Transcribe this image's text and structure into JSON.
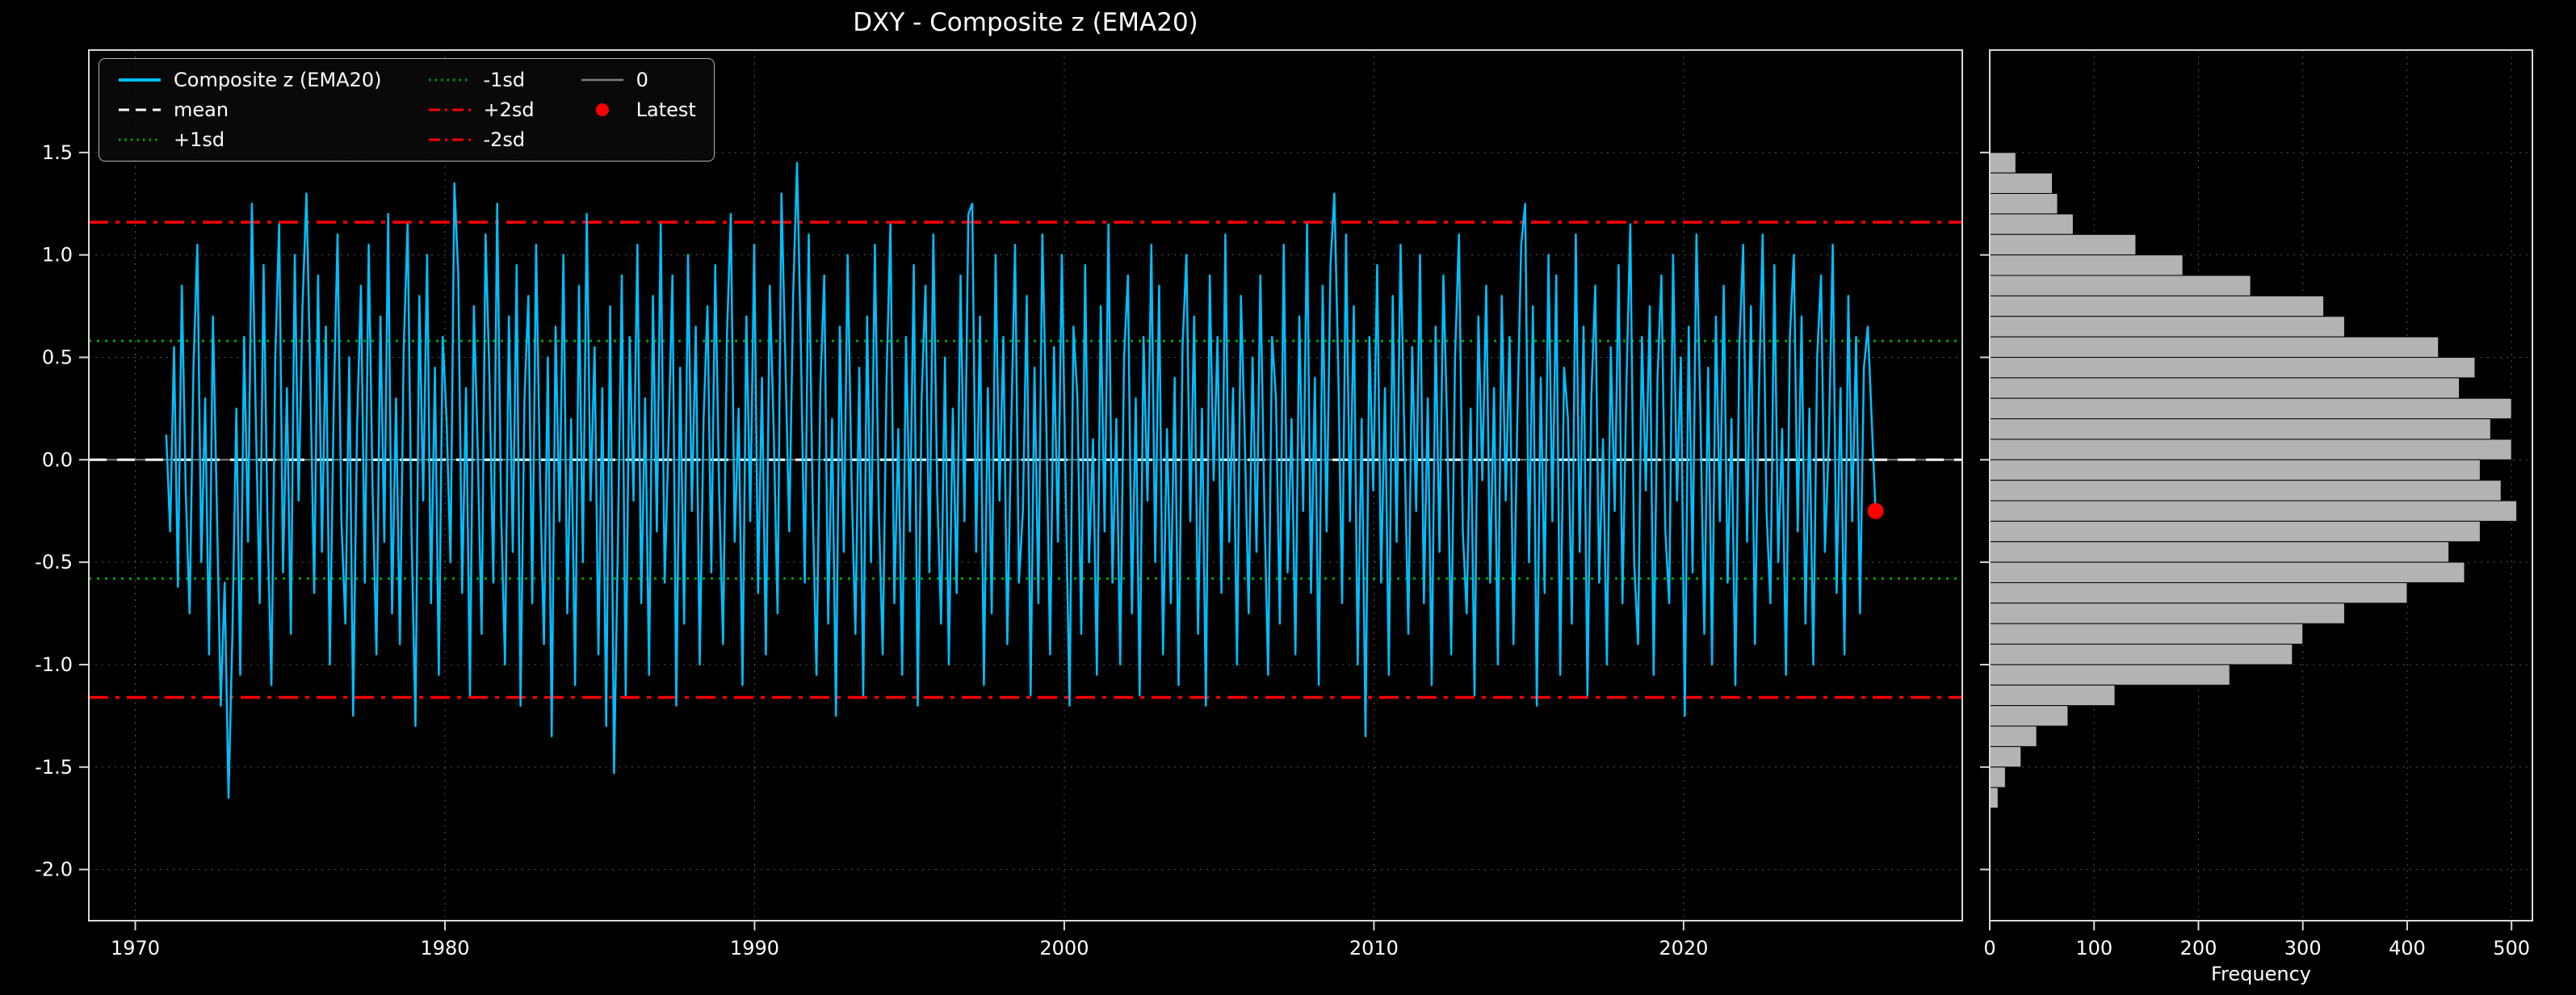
{
  "chart_data": [
    {
      "type": "line",
      "title": "DXY - Composite z (EMA20)",
      "xlim": [
        1968.5,
        2029
      ],
      "ylim": [
        -2.25,
        2.0
      ],
      "xticks": [
        1970,
        1980,
        1990,
        2000,
        2010,
        2020
      ],
      "yticks": [
        -2.0,
        -1.5,
        -1.0,
        -0.5,
        0.0,
        0.5,
        1.0,
        1.5
      ],
      "x_start": 1971.0,
      "x_end": 2026.2,
      "series": [
        {
          "name": "Composite z (EMA20)",
          "color": "#00bfff",
          "values": [
            0.12,
            -0.35,
            0.55,
            -0.62,
            0.85,
            -0.15,
            -0.75,
            0.45,
            1.05,
            -0.5,
            0.3,
            -0.95,
            0.7,
            -0.25,
            -1.2,
            -0.6,
            -1.65,
            -0.85,
            0.25,
            -1.05,
            0.6,
            -0.4,
            1.25,
            0.2,
            -0.7,
            0.95,
            -0.3,
            -1.1,
            0.5,
            1.15,
            -0.55,
            0.35,
            -0.85,
            1.0,
            -0.2,
            0.75,
            1.3,
            0.4,
            -0.65,
            0.9,
            -0.45,
            0.65,
            -1.0,
            0.25,
            1.1,
            -0.3,
            -0.8,
            0.5,
            -1.25,
            0.15,
            0.85,
            -0.6,
            1.05,
            -0.15,
            -0.95,
            0.7,
            -0.4,
            1.2,
            -0.75,
            0.3,
            -0.9,
            0.55,
            1.15,
            -0.35,
            -1.3,
            0.8,
            -0.2,
            1.0,
            -0.7,
            0.45,
            -1.05,
            0.6,
            0.2,
            -0.5,
            1.35,
            0.9,
            -0.65,
            0.35,
            -1.15,
            0.75,
            0.05,
            -0.85,
            1.1,
            0.4,
            -0.6,
            1.25,
            -0.25,
            -1.0,
            0.7,
            -0.45,
            0.95,
            -1.2,
            0.3,
            0.8,
            -0.7,
            1.05,
            -0.1,
            -0.9,
            0.5,
            -1.35,
            0.65,
            -0.3,
            1.0,
            -0.75,
            0.2,
            -1.1,
            0.85,
            -0.5,
            1.2,
            -0.2,
            0.55,
            -0.95,
            0.35,
            -1.3,
            0.75,
            -1.53,
            -0.4,
            0.9,
            -1.15,
            0.6,
            -0.2,
            1.05,
            -0.7,
            0.3,
            -1.05,
            0.8,
            -0.35,
            1.15,
            -0.6,
            0.1,
            0.9,
            -1.2,
            0.45,
            -0.8,
            1.0,
            -0.25,
            0.65,
            -1.0,
            0.2,
            0.75,
            -0.55,
            0.95,
            -0.15,
            -0.9,
            0.6,
            1.2,
            -0.4,
            0.25,
            -1.1,
            0.7,
            -0.3,
            1.05,
            -0.65,
            0.4,
            -0.95,
            0.85,
            0.15,
            -0.75,
            1.3,
            0.5,
            -0.35,
            0.8,
            1.45,
            0.55,
            -0.6,
            1.1,
            -0.2,
            -1.05,
            0.35,
            0.9,
            -0.8,
            0.2,
            -1.25,
            0.65,
            -0.45,
            1.0,
            -0.1,
            -0.85,
            0.45,
            -1.15,
            0.7,
            -0.5,
            1.05,
            -0.25,
            -0.95,
            0.4,
            1.15,
            -0.7,
            0.15,
            -1.05,
            0.6,
            -0.35,
            0.95,
            -1.2,
            0.3,
            0.85,
            -0.55,
            1.1,
            -0.15,
            -0.8,
            0.5,
            -1.0,
            0.25,
            -0.65,
            0.9,
            -0.3,
            1.2,
            1.25,
            -0.45,
            0.7,
            -1.1,
            0.35,
            -0.75,
            1.0,
            -0.2,
            0.6,
            -0.9,
            0.15,
            1.05,
            -0.6,
            -0.25,
            0.8,
            -1.15,
            0.45,
            -0.7,
            1.1,
            0.2,
            -0.95,
            0.55,
            -0.4,
            1.0,
            -0.15,
            -1.2,
            0.65,
            0.3,
            -0.85,
            0.95,
            -0.5,
            0.1,
            -1.05,
            0.75,
            -0.35,
            1.15,
            -0.6,
            0.2,
            -1.0,
            0.5,
            0.9,
            -0.75,
            0.3,
            -1.15,
            0.6,
            -0.2,
            1.05,
            -0.5,
            0.85,
            -0.95,
            0.15,
            -0.7,
            0.4,
            -1.1,
            0.55,
            1.0,
            -0.3,
            0.7,
            -0.85,
            0.25,
            -1.2,
            0.9,
            -0.1,
            0.6,
            -0.65,
            1.1,
            -0.4,
            0.35,
            -1.0,
            0.8,
            0.1,
            -0.75,
            0.5,
            -0.45,
            0.9,
            -0.2,
            -1.05,
            0.6,
            0.3,
            -0.8,
            1.05,
            -0.55,
            0.2,
            -0.95,
            0.7,
            -0.25,
            1.15,
            -0.65,
            0.4,
            -1.1,
            0.85,
            -0.35,
            0.95,
            1.3,
            0.45,
            -0.7,
            1.1,
            -0.3,
            0.75,
            -1.0,
            0.2,
            -1.35,
            0.6,
            -0.15,
            0.95,
            -0.6,
            0.35,
            -1.05,
            0.8,
            -0.4,
            1.05,
            0.1,
            -0.85,
            0.55,
            -0.25,
            1.0,
            -0.7,
            0.3,
            -1.1,
            0.65,
            -0.45,
            0.9,
            0.15,
            -0.95,
            0.5,
            1.1,
            -0.35,
            -0.75,
            0.25,
            -1.15,
            0.7,
            -0.1,
            0.85,
            -0.6,
            0.35,
            -1.0,
            0.8,
            -0.2,
            0.6,
            -0.9,
            0.2,
            1.05,
            1.25,
            -0.5,
            0.75,
            -1.2,
            0.4,
            -0.65,
            1.0,
            -0.3,
            0.9,
            -1.05,
            0.45,
            0.2,
            -0.8,
            1.1,
            -0.45,
            0.65,
            -1.15,
            0.3,
            0.85,
            -0.6,
            0.1,
            -1.0,
            0.55,
            -0.25,
            0.95,
            -0.7,
            0.35,
            1.15,
            -0.5,
            -0.9,
            0.6,
            -0.15,
            0.75,
            -1.05,
            0.4,
            0.9,
            -0.35,
            -0.7,
            1.0,
            -0.2,
            0.5,
            -1.25,
            0.65,
            -0.55,
            1.1,
            0.25,
            -0.85,
            0.45,
            -1.0,
            0.7,
            -0.3,
            0.85,
            -0.6,
            0.2,
            -1.1,
            0.55,
            1.05,
            -0.4,
            0.75,
            -0.9,
            0.3,
            1.1,
            -0.25,
            -0.7,
            0.95,
            -0.5,
            0.15,
            -1.05,
            0.6,
            1.0,
            -0.35,
            0.7,
            -0.8,
            0.25,
            -1.0,
            0.5,
            0.9,
            -0.45,
            0.1,
            1.05,
            -0.65,
            0.35,
            -0.95,
            0.8,
            -0.3,
            0.6,
            -0.75,
            0.45,
            0.65,
            0.2,
            -0.25
          ]
        }
      ],
      "ref_lines": [
        {
          "name": "0",
          "value": 0.0,
          "color": "#808080",
          "style": "solid",
          "width": 2
        },
        {
          "name": "mean",
          "value": 0.0,
          "color": "#ffffff",
          "style": "dashed",
          "width": 3
        },
        {
          "name": "+1sd",
          "value": 0.58,
          "color": "#00a000",
          "style": "dotted",
          "width": 3
        },
        {
          "name": "-1sd",
          "value": -0.58,
          "color": "#00a000",
          "style": "dotted",
          "width": 3
        },
        {
          "name": "+2sd",
          "value": 1.16,
          "color": "#ff0000",
          "style": "dashdot",
          "width": 3.5
        },
        {
          "name": "-2sd",
          "value": -1.16,
          "color": "#ff0000",
          "style": "dashdot",
          "width": 3.5
        }
      ],
      "latest": {
        "x": 2026.2,
        "y": -0.25,
        "color": "#ff0000"
      },
      "legend": [
        {
          "label": "Composite z (EMA20)",
          "color": "#00bfff",
          "style": "solid"
        },
        {
          "label": "mean",
          "color": "#ffffff",
          "style": "dashed"
        },
        {
          "label": "+1sd",
          "color": "#00a000",
          "style": "dotted"
        },
        {
          "label": "-1sd",
          "color": "#00a000",
          "style": "dotted"
        },
        {
          "label": "+2sd",
          "color": "#ff0000",
          "style": "dashdot"
        },
        {
          "label": "-2sd",
          "color": "#ff0000",
          "style": "dashdot"
        },
        {
          "label": "0",
          "color": "#808080",
          "style": "solid"
        },
        {
          "label": "Latest",
          "color": "#ff0000",
          "style": "marker"
        }
      ]
    },
    {
      "type": "bar",
      "orientation": "horizontal",
      "xlabel": "Frequency",
      "xlim": [
        0,
        520
      ],
      "xticks": [
        0,
        100,
        200,
        300,
        400,
        500
      ],
      "bar_color": "#b3b3b3",
      "bin_width": 0.1,
      "bin_centers": [
        1.45,
        1.35,
        1.25,
        1.15,
        1.05,
        0.95,
        0.85,
        0.75,
        0.65,
        0.55,
        0.45,
        0.35,
        0.25,
        0.15,
        0.05,
        -0.05,
        -0.15,
        -0.25,
        -0.35,
        -0.45,
        -0.55,
        -0.65,
        -0.75,
        -0.85,
        -0.95,
        -1.05,
        -1.15,
        -1.25,
        -1.35,
        -1.45,
        -1.55,
        -1.65
      ],
      "counts": [
        25,
        60,
        65,
        80,
        140,
        185,
        250,
        320,
        340,
        430,
        465,
        450,
        500,
        480,
        500,
        470,
        490,
        505,
        470,
        440,
        455,
        400,
        340,
        300,
        290,
        230,
        120,
        75,
        45,
        30,
        15,
        8
      ]
    }
  ]
}
